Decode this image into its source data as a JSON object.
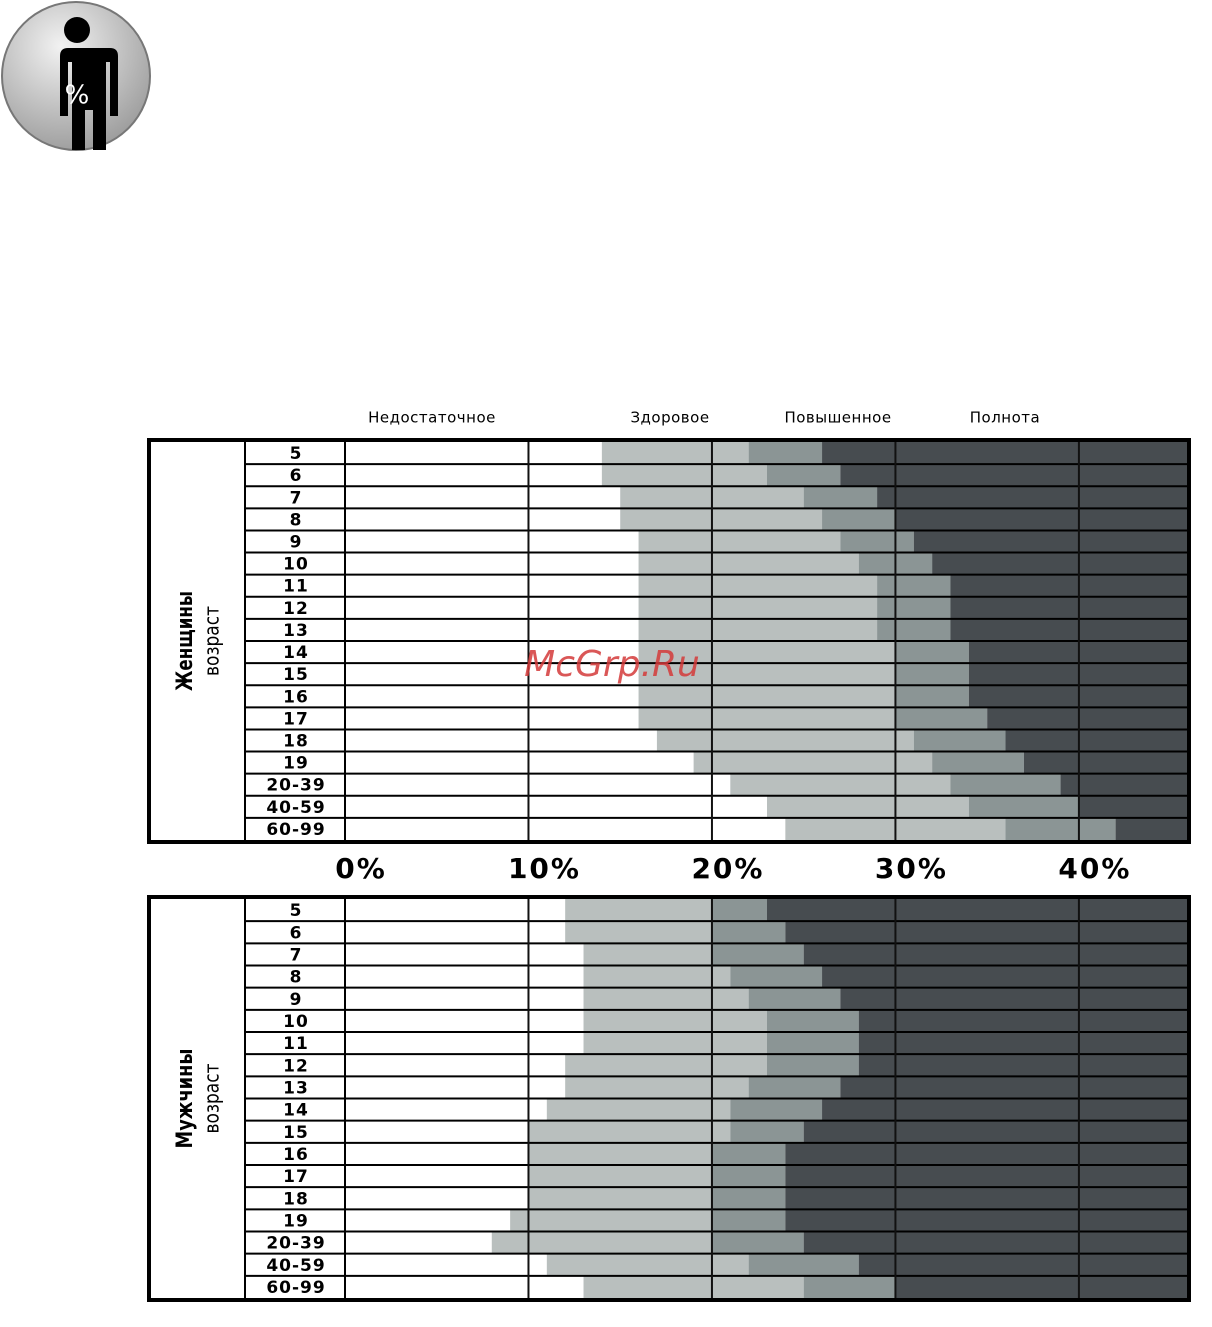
{
  "icon_label": "%",
  "watermark": "McGrp.Ru",
  "chart_data": [
    {
      "type": "stacked-bar",
      "group": "Женщины",
      "ylabel": "возраст",
      "categories": [
        "5",
        "6",
        "7",
        "8",
        "9",
        "10",
        "11",
        "12",
        "13",
        "14",
        "15",
        "16",
        "17",
        "18",
        "19",
        "20-39",
        "40-59",
        "60-99"
      ],
      "series": [
        {
          "name": "Недостаточное",
          "color": "#ffffff",
          "values": [
            14,
            14,
            15,
            15,
            16,
            16,
            16,
            16,
            16,
            16,
            16,
            16,
            16,
            17,
            19,
            21,
            23,
            24
          ]
        },
        {
          "name": "Здоровое",
          "color": "#b9bfbe",
          "values": [
            8,
            9,
            10,
            11,
            11,
            12,
            13,
            13,
            13,
            14,
            14,
            14,
            14,
            14,
            13,
            12,
            11,
            12
          ]
        },
        {
          "name": "Повышенное",
          "color": "#8b9595",
          "values": [
            4,
            4,
            4,
            4,
            4,
            4,
            4,
            4,
            4,
            4,
            4,
            4,
            5,
            5,
            5,
            6,
            6,
            6
          ]
        },
        {
          "name": "Полнота",
          "color": "#474c50",
          "values": [
            20,
            19,
            17,
            16,
            15,
            14,
            13,
            13,
            13,
            12,
            12,
            12,
            11,
            10,
            9,
            7,
            6,
            4
          ]
        }
      ],
      "xlim": [
        0,
        46
      ],
      "xticks": [
        {
          "value": 0,
          "label": "0%"
        },
        {
          "value": 10,
          "label": "10%"
        },
        {
          "value": 20,
          "label": "20%"
        },
        {
          "value": 30,
          "label": "30%"
        },
        {
          "value": 40,
          "label": "40%"
        }
      ]
    },
    {
      "type": "stacked-bar",
      "group": "Мужчины",
      "ylabel": "возраст",
      "categories": [
        "5",
        "6",
        "7",
        "8",
        "9",
        "10",
        "11",
        "12",
        "13",
        "14",
        "15",
        "16",
        "17",
        "18",
        "19",
        "20-39",
        "40-59",
        "60-99"
      ],
      "series": [
        {
          "color": "#ffffff",
          "values": [
            12,
            12,
            13,
            13,
            13,
            13,
            13,
            12,
            12,
            11,
            10,
            10,
            10,
            10,
            9,
            8,
            11,
            13
          ]
        },
        {
          "color": "#b9bfbe",
          "values": [
            8,
            8,
            7,
            8,
            9,
            10,
            10,
            11,
            10,
            10,
            11,
            10,
            10,
            10,
            11,
            12,
            11,
            12
          ]
        },
        {
          "color": "#8b9595",
          "values": [
            3,
            4,
            5,
            5,
            5,
            5,
            5,
            5,
            5,
            5,
            4,
            4,
            4,
            4,
            4,
            5,
            6,
            5
          ]
        },
        {
          "color": "#474c50",
          "values": [
            23,
            22,
            21,
            20,
            19,
            18,
            18,
            18,
            19,
            20,
            21,
            22,
            22,
            22,
            22,
            21,
            18,
            16
          ]
        }
      ],
      "xlim": [
        0,
        46
      ]
    }
  ]
}
